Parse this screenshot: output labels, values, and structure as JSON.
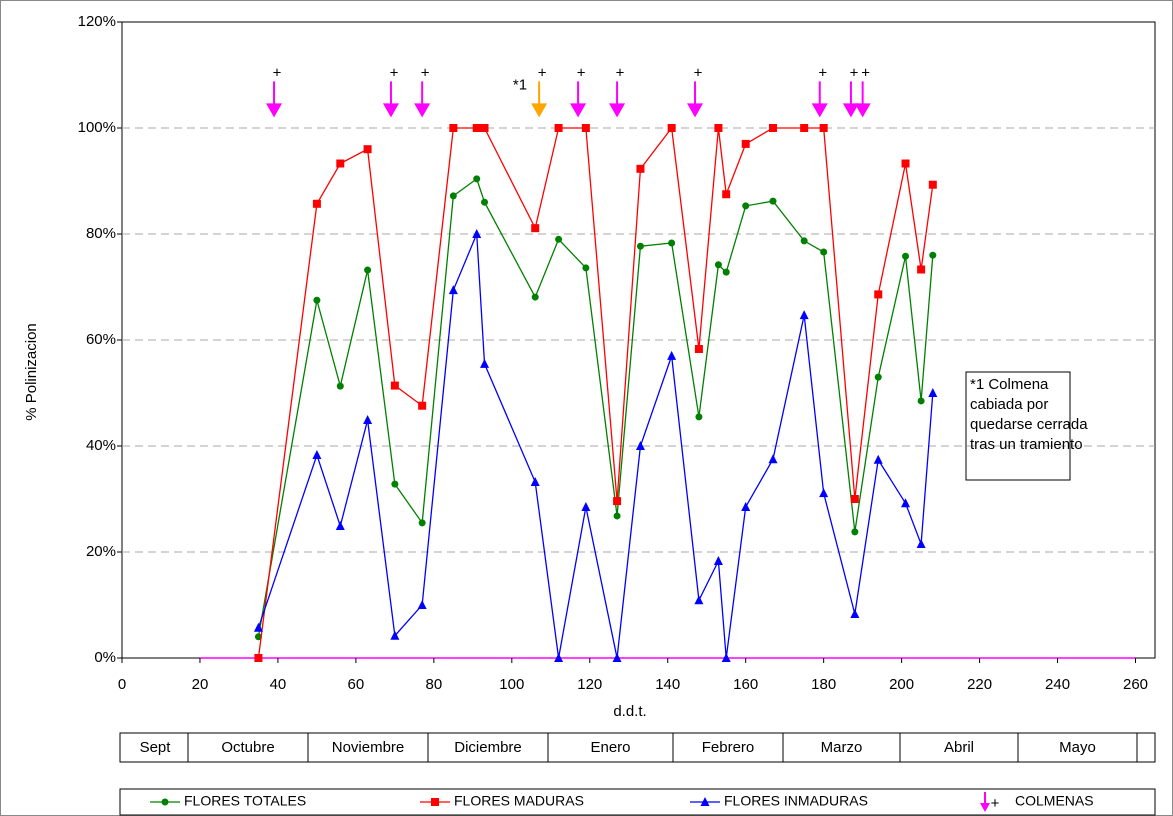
{
  "chart_data": {
    "type": "line",
    "x_label": "d.d.t.",
    "y_label": "% Polinizacion",
    "xlim": [
      0,
      265
    ],
    "xticks": [
      0,
      20,
      40,
      60,
      80,
      100,
      120,
      140,
      160,
      180,
      200,
      220,
      240,
      260
    ],
    "ylim": [
      0,
      120
    ],
    "yticks": [
      {
        "value": 0,
        "label": "0%"
      },
      {
        "value": 20,
        "label": "20%"
      },
      {
        "value": 40,
        "label": "40%"
      },
      {
        "value": 60,
        "label": "60%"
      },
      {
        "value": 80,
        "label": "80%"
      },
      {
        "value": 100,
        "label": "100%"
      },
      {
        "value": 120,
        "label": "120%"
      }
    ],
    "grid": true,
    "x": [
      35,
      50,
      56,
      63,
      70,
      77,
      85,
      91,
      93,
      106,
      112,
      119,
      127,
      133,
      141,
      148,
      153,
      155,
      160,
      167,
      175,
      180,
      188,
      194,
      201,
      205,
      208
    ],
    "series": [
      {
        "name": "FLORES TOTALES",
        "color": "#008000",
        "marker": "circle",
        "values": [
          4,
          67.5,
          51.3,
          73.2,
          32.8,
          25.5,
          87.2,
          90.4,
          86,
          68.1,
          79,
          73.6,
          26.8,
          77.7,
          78.3,
          45.5,
          74.2,
          72.8,
          85.3,
          86.2,
          78.7,
          76.6,
          23.8,
          53,
          75.8,
          48.5,
          76
        ]
      },
      {
        "name": "FLORES MADURAS",
        "color": "#ff0000",
        "marker": "square",
        "values": [
          0,
          85.7,
          93.3,
          96,
          51.4,
          47.6,
          100,
          100,
          100,
          81.1,
          100,
          100,
          29.6,
          92.3,
          100,
          58.3,
          100,
          87.5,
          97,
          100,
          100,
          100,
          30,
          68.6,
          93.3,
          73.3,
          89.3
        ]
      },
      {
        "name": "FLORES INMADURAS",
        "color": "#0000ff",
        "marker": "triangle",
        "values": [
          5.7,
          38.3,
          24.9,
          44.9,
          4.2,
          10,
          69.4,
          80,
          55.5,
          33.2,
          0,
          28.5,
          0,
          40,
          57,
          10.9,
          18.3,
          0,
          28.5,
          37.5,
          64.7,
          31.1,
          8.3,
          37.4,
          29.2,
          21.5,
          50
        ]
      }
    ],
    "hives": {
      "name": "COLMENAS",
      "color": "#ff00ff",
      "x": [
        39,
        69,
        77,
        107,
        117,
        127,
        147,
        179,
        187,
        190
      ],
      "values": [
        102,
        102,
        102,
        102,
        102,
        102,
        102,
        102,
        102,
        102
      ],
      "highlight_index": 3,
      "highlight_color": "#ffa500",
      "highlight_label": "*1"
    },
    "note": [
      "*1 Colmena",
      "cabiada por",
      "quedarse cerrada",
      "tras un tramiento"
    ],
    "months": [
      "Sept",
      "Octubre",
      "Noviembre",
      "Diciembre",
      "Enero",
      "Febrero",
      "Marzo",
      "Abril",
      "Mayo"
    ]
  }
}
